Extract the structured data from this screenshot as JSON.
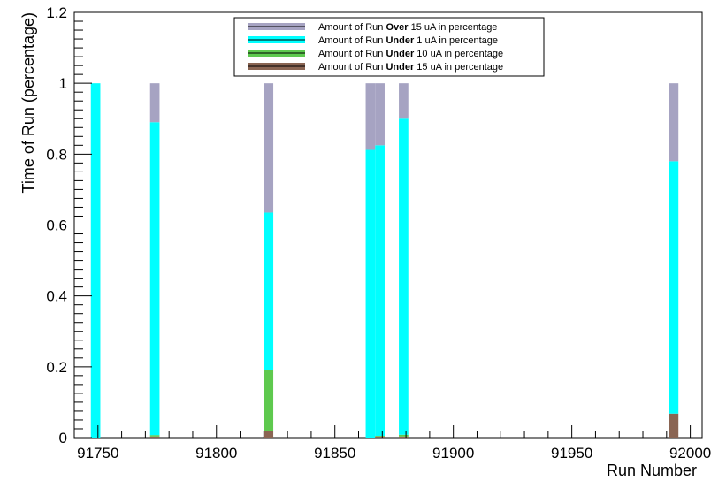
{
  "chart_data": {
    "type": "bar",
    "stacked": true,
    "xlabel": "Run Number",
    "ylabel": "Time of Run (percentage)",
    "xlim": [
      91740,
      92005
    ],
    "ylim": [
      0,
      1.2
    ],
    "xticks": [
      91750,
      91800,
      91850,
      91900,
      91950,
      92000
    ],
    "xtick_labels": [
      "91750",
      "91800",
      "91850",
      "91900",
      "91950",
      "92000"
    ],
    "yticks": [
      0,
      0.2,
      0.4,
      0.6,
      0.8,
      1,
      1.2
    ],
    "ytick_labels": [
      "0",
      "0.2",
      "0.4",
      "0.6",
      "0.8",
      "1",
      "1.2"
    ],
    "bin_width": 4,
    "x": [
      91749,
      91774,
      91822,
      91865,
      91869,
      91879,
      91993
    ],
    "legend": [
      {
        "prefix": "Amount of Run ",
        "bold": "Over",
        "suffix": " 15 uA in percentage",
        "color": "#a6a3c2"
      },
      {
        "prefix": "Amount of Run ",
        "bold": "Under",
        "suffix": " 1 uA in percentage",
        "color": "#00ffff"
      },
      {
        "prefix": "Amount of Run ",
        "bold": "Under",
        "suffix": " 10 uA in percentage",
        "color": "#5ec94e"
      },
      {
        "prefix": "Amount of Run ",
        "bold": "Under",
        "suffix": " 15 uA in percentage",
        "color": "#8a6553"
      }
    ],
    "series": [
      {
        "key": "under15",
        "color": "#8a6553",
        "values": [
          0,
          0.003,
          0.02,
          0,
          0.003,
          0.003,
          0.068
        ]
      },
      {
        "key": "under10",
        "color": "#5ec94e",
        "values": [
          0,
          0.004,
          0.17,
          0,
          0.002,
          0.005,
          0
        ]
      },
      {
        "key": "under1",
        "color": "#00ffff",
        "values": [
          1.0,
          0.883,
          0.445,
          0.812,
          0.82,
          0.892,
          0.712
        ]
      },
      {
        "key": "over15",
        "color": "#a6a3c2",
        "values": [
          0,
          0.11,
          0.365,
          0.188,
          0.175,
          0.1,
          0.22
        ]
      }
    ]
  }
}
